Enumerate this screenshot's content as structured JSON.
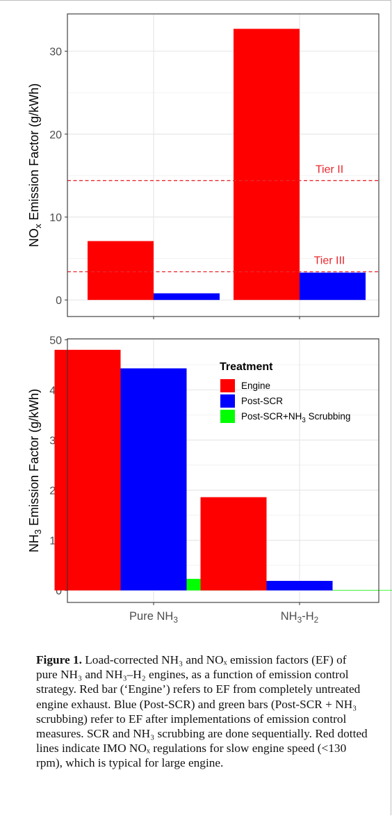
{
  "chart_data": [
    {
      "type": "bar",
      "ylabel": "NO_x Emission Factor (g/kWh)",
      "ylim": [
        -2,
        34.5
      ],
      "y_ticks": [
        0,
        10,
        20,
        30
      ],
      "grid": true,
      "categories": [
        "Pure NH3",
        "NH3-H2"
      ],
      "series": [
        {
          "name": "Engine",
          "values": [
            7.1,
            32.7
          ]
        },
        {
          "name": "Post-SCR",
          "values": [
            0.8,
            3.3
          ]
        }
      ],
      "reference_lines": [
        {
          "label": "Tier II",
          "value": 14.4
        },
        {
          "label": "Tier III",
          "value": 3.4
        }
      ]
    },
    {
      "type": "bar",
      "ylabel": "NH3 Emission Factor (g/kWh)",
      "ylim": [
        -2.4,
        50.2
      ],
      "y_ticks": [
        0,
        10,
        20,
        30,
        40,
        50
      ],
      "grid": true,
      "categories": [
        "Pure NH3",
        "NH3-H2"
      ],
      "x_tick_labels": [
        "Pure NH3",
        "NH3-H2"
      ],
      "legend_title": "Treatment",
      "legend_placement": "top-right",
      "series": [
        {
          "name": "Engine",
          "values": [
            48.0,
            18.6
          ]
        },
        {
          "name": "Post-SCR",
          "values": [
            44.3,
            1.9
          ]
        },
        {
          "name": "Post-SCR+NH3 Scrubbing",
          "values": [
            2.3,
            0.1
          ]
        }
      ]
    }
  ],
  "colors": {
    "engine": "#ff0000",
    "post_scr": "#0000ff",
    "scrubbing": "#00ff00",
    "tier_line": "#e8272d"
  },
  "caption": {
    "label": "Figure 1.",
    "text": "Load-corrected NH₃ and NOₓ emission factors (EF) of pure NH₃ and NH₃–H₂ engines, as a function of emission control strategy. Red bar (‘Engine’) refers to EF from completely untreated engine exhaust. Blue (Post-SCR) and green bars (Post-SCR + NH₃ scrubbing) refer to EF after implementations of emission control measures. SCR and NH₃ scrubbing are done sequentially. Red dotted lines indicate IMO NOₓ regulations for slow engine speed (<130 rpm), which is typical for large engine."
  }
}
